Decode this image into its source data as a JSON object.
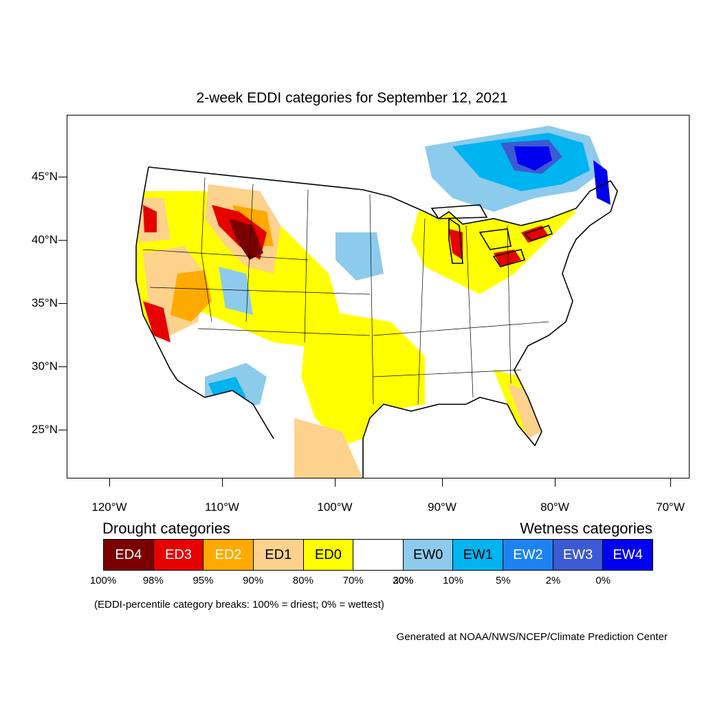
{
  "title": "2-week EDDI categories for September 12, 2021",
  "lat_labels": [
    "45°N",
    "40°N",
    "35°N",
    "30°N",
    "25°N"
  ],
  "lon_labels": [
    "120°W",
    "110°W",
    "100°W",
    "90°W",
    "80°W",
    "70°W"
  ],
  "legend": {
    "drought_heading": "Drought categories",
    "wetness_heading": "Wetness categories",
    "categories": [
      {
        "label": "ED4",
        "color": "#7a0000",
        "text_color": "#ffffff"
      },
      {
        "label": "ED3",
        "color": "#e60000",
        "text_color": "#ffffff"
      },
      {
        "label": "ED2",
        "color": "#ffaa00",
        "text_color": "#ffffff"
      },
      {
        "label": "ED1",
        "color": "#fcd28c",
        "text_color": "#000000"
      },
      {
        "label": "ED0",
        "color": "#ffff00",
        "text_color": "#000000"
      },
      {
        "label": "",
        "color": "#ffffff",
        "text_color": "#000000"
      },
      {
        "label": "EW0",
        "color": "#8ccbeb",
        "text_color": "#000000"
      },
      {
        "label": "EW1",
        "color": "#00b4f0",
        "text_color": "#000000"
      },
      {
        "label": "EW2",
        "color": "#1e82f0",
        "text_color": "#ffffff"
      },
      {
        "label": "EW3",
        "color": "#3c5ad2",
        "text_color": "#ffffff"
      },
      {
        "label": "EW4",
        "color": "#0000f0",
        "text_color": "#ffffff"
      }
    ],
    "breaks": [
      "100%",
      "98%",
      "95%",
      "90%",
      "80%",
      "70%",
      "30%",
      "20%",
      "10%",
      "5%",
      "2%",
      "0%"
    ]
  },
  "note": "(EDDI-percentile category breaks: 100% = driest; 0% = wettest)",
  "credit": "Generated at NOAA/NWS/NCEP/Climate Prediction Center"
}
